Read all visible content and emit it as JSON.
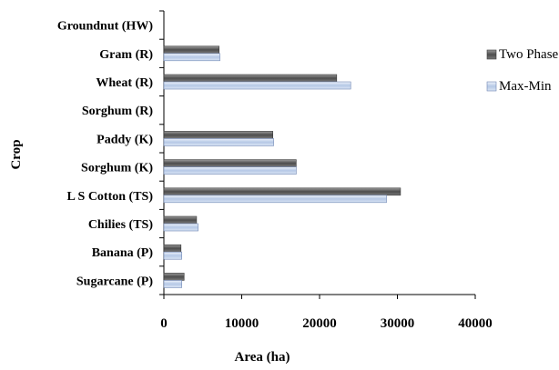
{
  "chart_data": {
    "type": "bar",
    "orientation": "horizontal",
    "title": "",
    "xlabel": "Area (ha)",
    "ylabel": "Crop",
    "xlim": [
      0,
      40000
    ],
    "xticks": [
      0,
      10000,
      20000,
      30000,
      40000
    ],
    "xtick_labels": [
      "0",
      "10000",
      "20000",
      "30000",
      "40000"
    ],
    "categories": [
      "Groundnut (HW)",
      "Gram (R)",
      "Wheat (R)",
      "Sorghum (R)",
      "Paddy (K)",
      "Sorghum (K)",
      "L S Cotton (TS)",
      "Chilies (TS)",
      "Banana (P)",
      "Sugarcane (P)"
    ],
    "series": [
      {
        "name": "Two Phase",
        "color": "#6b6b6b",
        "values": [
          0,
          7100,
          22200,
          0,
          14000,
          17000,
          30400,
          4200,
          2200,
          2600
        ]
      },
      {
        "name": "Max-Min",
        "color": "#c7d6ec",
        "values": [
          0,
          7200,
          24000,
          0,
          14100,
          17000,
          28600,
          4400,
          2300,
          2300
        ]
      }
    ],
    "grid": false,
    "legend_position": "right"
  }
}
